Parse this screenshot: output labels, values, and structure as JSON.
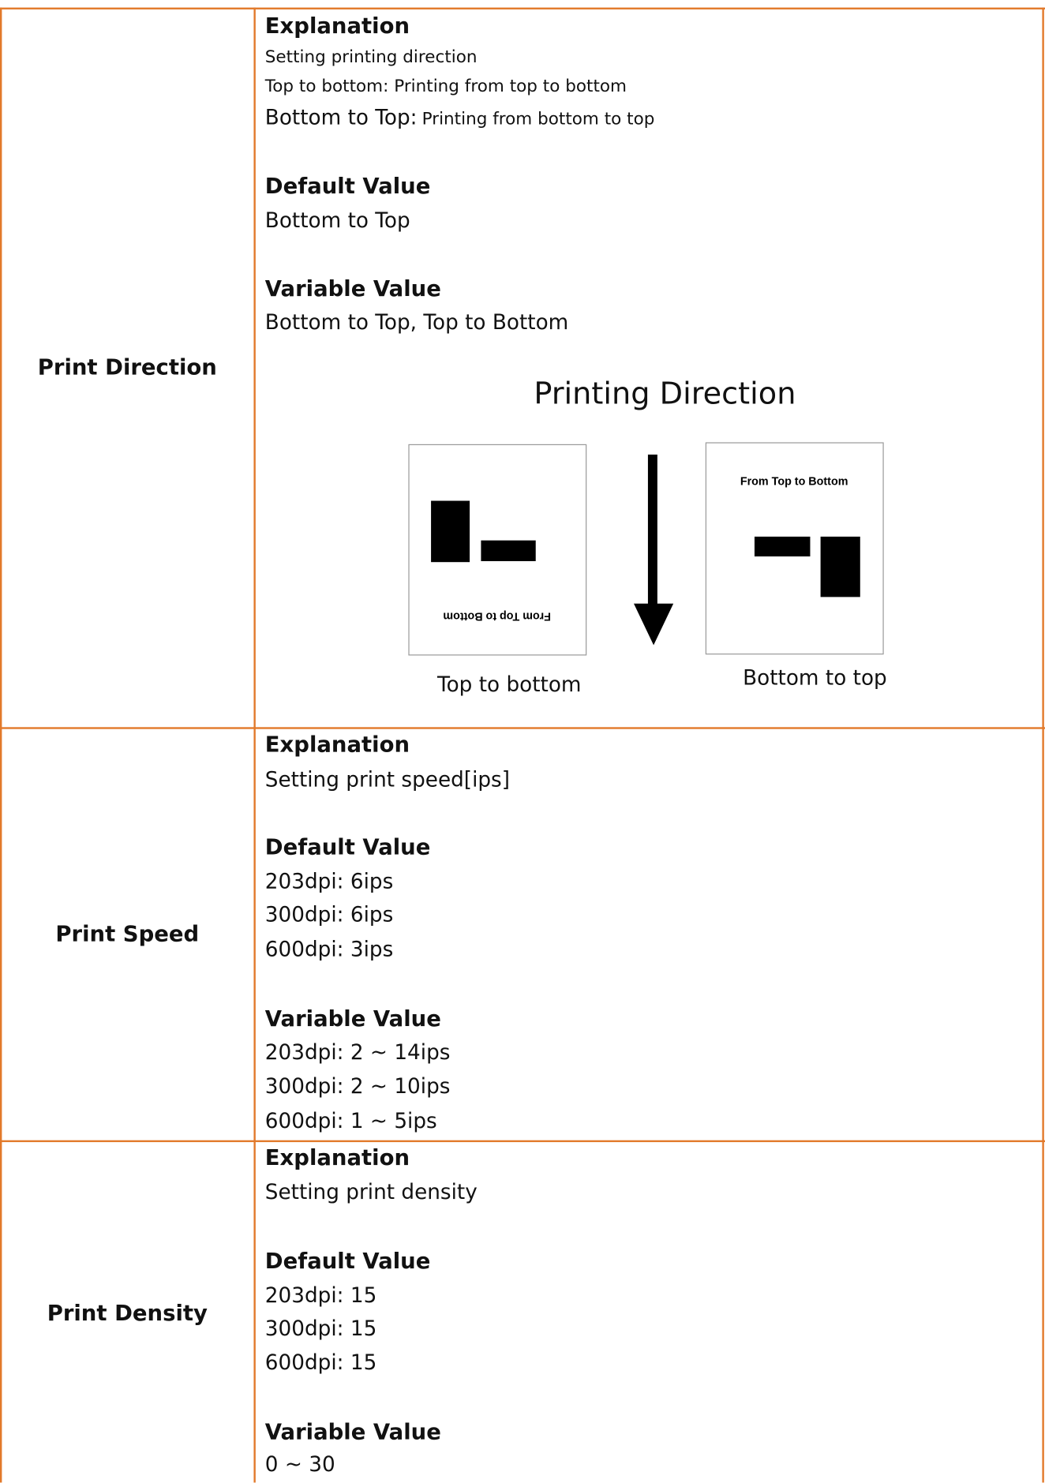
{
  "rows": [
    {
      "label": "Print Direction",
      "sections": [
        {
          "heading": "Explanation",
          "lines": [
            "Setting printing direction",
            "Top to bottom: Printing from top to bottom",
            {
              "lead": "Bottom to Top:",
              "text": "Printing from bottom to top"
            }
          ]
        },
        {
          "heading": "Default Value",
          "lines": [
            "Bottom to Top"
          ]
        },
        {
          "heading": "Variable Value",
          "lines": [
            "Bottom to Top, Top to Bottom"
          ]
        }
      ],
      "diagram": {
        "title": "Printing Direction",
        "left": {
          "image_text": "From Top to Bottom",
          "caption": "Top to bottom"
        },
        "right": {
          "image_text": "From Top to Bottom",
          "caption": "Bottom to top"
        }
      }
    },
    {
      "label": "Print Speed",
      "sections": [
        {
          "heading": "Explanation",
          "lines": [
            "Setting print speed[ips]"
          ]
        },
        {
          "heading": "Default Value",
          "lines": [
            "203dpi: 6ips",
            "300dpi: 6ips",
            "600dpi: 3ips"
          ]
        },
        {
          "heading": "Variable Value",
          "lines": [
            "203dpi: 2 ~ 14ips",
            "300dpi: 2 ~ 10ips",
            "600dpi: 1 ~ 5ips"
          ]
        }
      ]
    },
    {
      "label": "Print Density",
      "sections": [
        {
          "heading": "Explanation",
          "lines": [
            "Setting print density"
          ]
        },
        {
          "heading": "Default Value",
          "lines": [
            "203dpi: 15",
            "300dpi: 15",
            "600dpi: 15"
          ]
        },
        {
          "heading": "Variable Value",
          "lines": [
            "0 ~ 30"
          ]
        }
      ]
    }
  ]
}
